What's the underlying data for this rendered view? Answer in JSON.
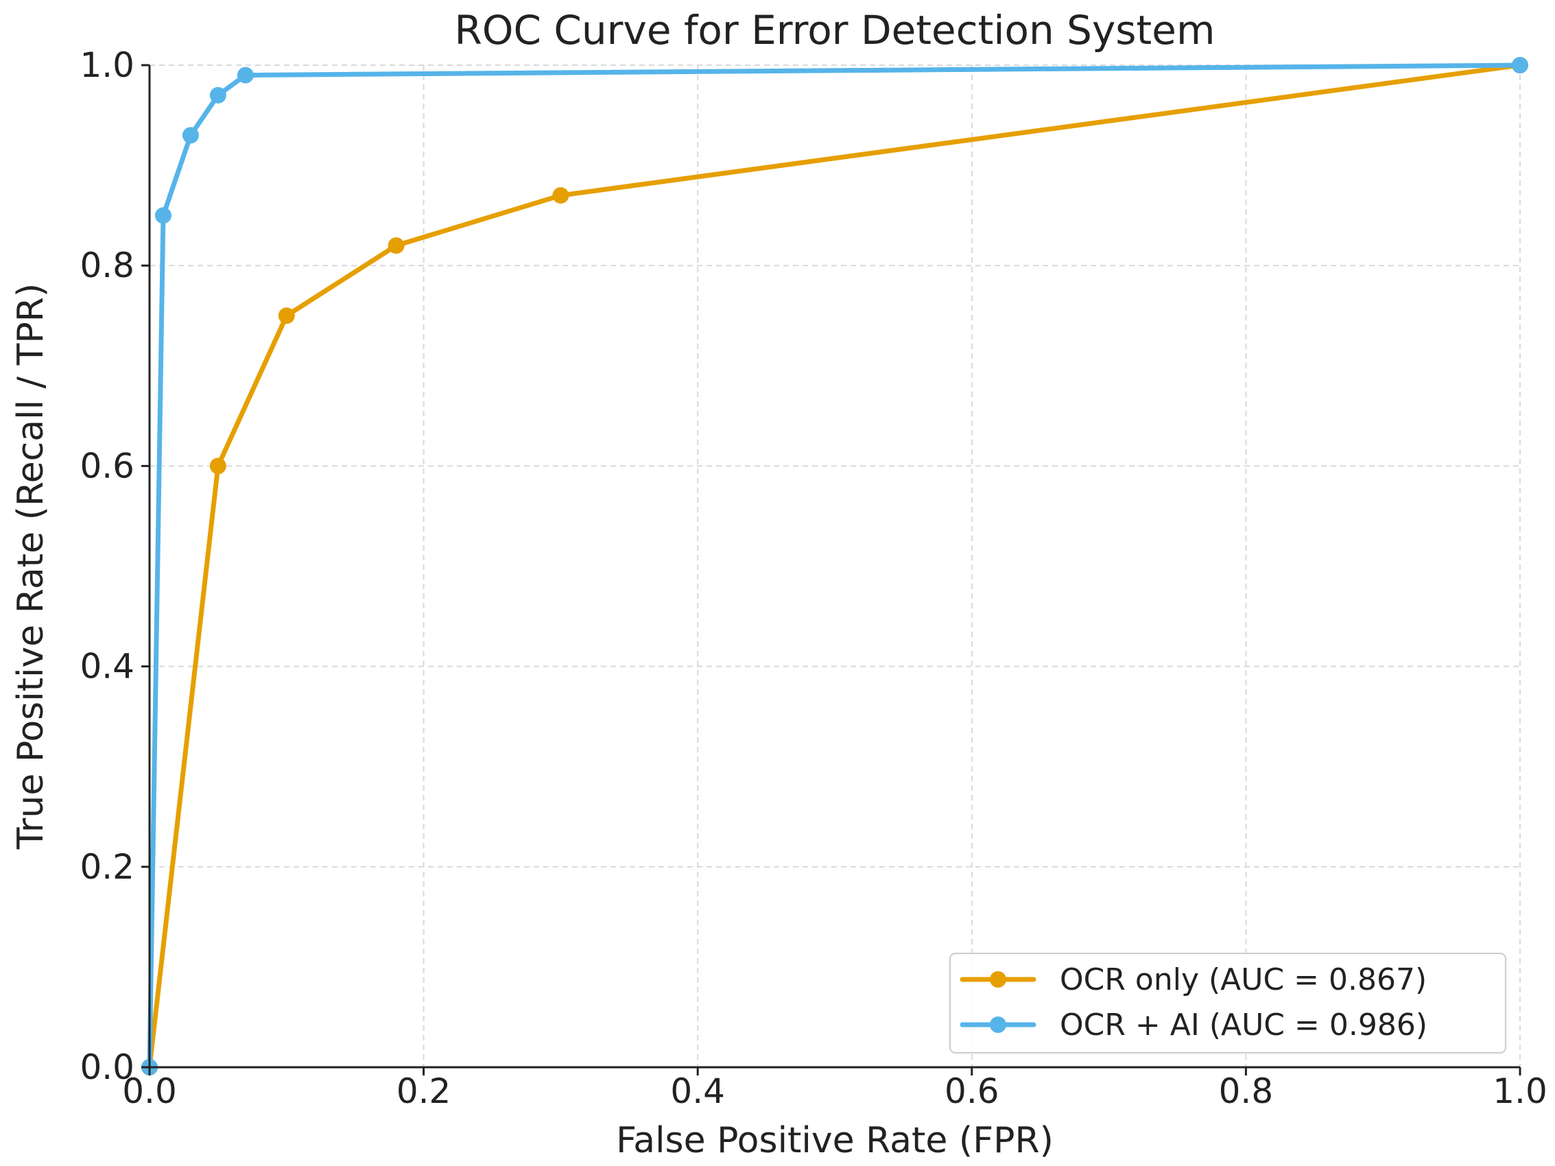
{
  "chart_data": {
    "type": "line",
    "title": "ROC Curve for Error Detection System",
    "xlabel": "False Positive Rate (FPR)",
    "ylabel": "True Positive Rate (Recall / TPR)",
    "xlim": [
      0,
      1
    ],
    "ylim": [
      0,
      1
    ],
    "xticks": [
      0.0,
      0.2,
      0.4,
      0.6,
      0.8,
      1.0
    ],
    "yticks": [
      0.0,
      0.2,
      0.4,
      0.6,
      0.8,
      1.0
    ],
    "xtick_labels": [
      "0.0",
      "0.2",
      "0.4",
      "0.6",
      "0.8",
      "1.0"
    ],
    "ytick_labels": [
      "0.0",
      "0.2",
      "0.4",
      "0.6",
      "0.8",
      "1.0"
    ],
    "grid": true,
    "legend_position": "bottom-right",
    "series": [
      {
        "name": "OCR only (AUC = 0.867)",
        "color": "#E69F00",
        "x": [
          0.0,
          0.05,
          0.1,
          0.18,
          0.3,
          1.0
        ],
        "y": [
          0.0,
          0.6,
          0.75,
          0.82,
          0.87,
          1.0
        ]
      },
      {
        "name": "OCR + AI (AUC = 0.986)",
        "color": "#56B4E9",
        "x": [
          0.0,
          0.01,
          0.03,
          0.05,
          0.07,
          1.0
        ],
        "y": [
          0.0,
          0.85,
          0.93,
          0.97,
          0.99,
          1.0
        ]
      }
    ]
  }
}
